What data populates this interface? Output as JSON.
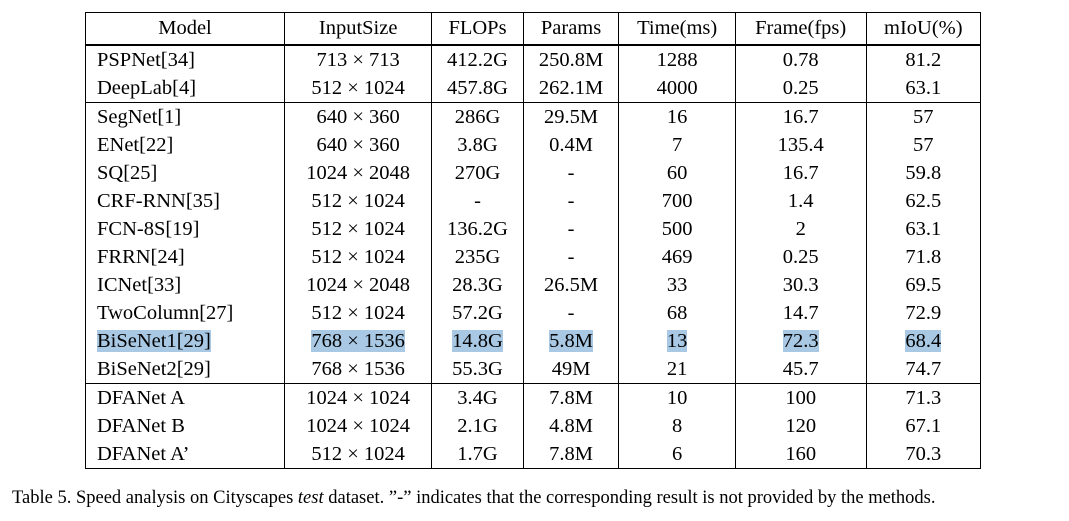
{
  "table": {
    "headers": [
      "Model",
      "InputSize",
      "FLOPs",
      "Params",
      "Time(ms)",
      "Frame(fps)",
      "mIoU(%)"
    ],
    "groups": [
      [
        {
          "cells": [
            "PSPNet[34]",
            "713 × 713",
            "412.2G",
            "250.8M",
            "1288",
            "0.78",
            "81.2"
          ]
        },
        {
          "cells": [
            "DeepLab[4]",
            "512 × 1024",
            "457.8G",
            "262.1M",
            "4000",
            "0.25",
            "63.1"
          ]
        }
      ],
      [
        {
          "cells": [
            "SegNet[1]",
            "640 × 360",
            "286G",
            "29.5M",
            "16",
            "16.7",
            "57"
          ]
        },
        {
          "cells": [
            "ENet[22]",
            "640 × 360",
            "3.8G",
            "0.4M",
            "7",
            "135.4",
            "57"
          ],
          "bold": [
            4,
            5
          ]
        },
        {
          "cells": [
            "SQ[25]",
            "1024 × 2048",
            "270G",
            "-",
            "60",
            "16.7",
            "59.8"
          ]
        },
        {
          "cells": [
            "CRF-RNN[35]",
            "512 × 1024",
            "-",
            "-",
            "700",
            "1.4",
            "62.5"
          ]
        },
        {
          "cells": [
            "FCN-8S[19]",
            "512 × 1024",
            "136.2G",
            "-",
            "500",
            "2",
            "63.1"
          ]
        },
        {
          "cells": [
            "FRRN[24]",
            "512 × 1024",
            "235G",
            "-",
            "469",
            "0.25",
            "71.8"
          ]
        },
        {
          "cells": [
            "ICNet[33]",
            "1024 × 2048",
            "28.3G",
            "26.5M",
            "33",
            "30.3",
            "69.5"
          ]
        },
        {
          "cells": [
            "TwoColumn[27]",
            "512 × 1024",
            "57.2G",
            "-",
            "68",
            "14.7",
            "72.9"
          ]
        },
        {
          "cells": [
            "BiSeNet1[29]",
            "768 × 1536",
            "14.8G",
            "5.8M",
            "13",
            "72.3",
            "68.4"
          ],
          "highlight": true
        },
        {
          "cells": [
            "BiSeNet2[29]",
            "768 × 1536",
            "55.3G",
            "49M",
            "21",
            "45.7",
            "74.7"
          ],
          "bold": [
            6
          ]
        }
      ],
      [
        {
          "cells": [
            "DFANet A",
            "1024 × 1024",
            "3.4G",
            "7.8M",
            "10",
            "100",
            "71.3"
          ],
          "bold": [
            2,
            4,
            5
          ]
        },
        {
          "cells": [
            "DFANet B",
            "1024 × 1024",
            "2.1G",
            "4.8M",
            "8",
            "120",
            "67.1"
          ],
          "bold": [
            2,
            4,
            5
          ]
        },
        {
          "cells": [
            "DFANet A’",
            "512 × 1024",
            "1.7G",
            "7.8M",
            "6",
            "160",
            "70.3"
          ],
          "bold": [
            2,
            4,
            5
          ]
        }
      ]
    ]
  },
  "caption": {
    "prefix": "Table 5. Speed analysis on Cityscapes ",
    "emphasis": "test",
    "suffix": " dataset. ”-” indicates that the corresponding result is not provided by the methods."
  },
  "colors": {
    "highlight": "#a8c8e4",
    "text": "#000000",
    "background": "#ffffff"
  }
}
